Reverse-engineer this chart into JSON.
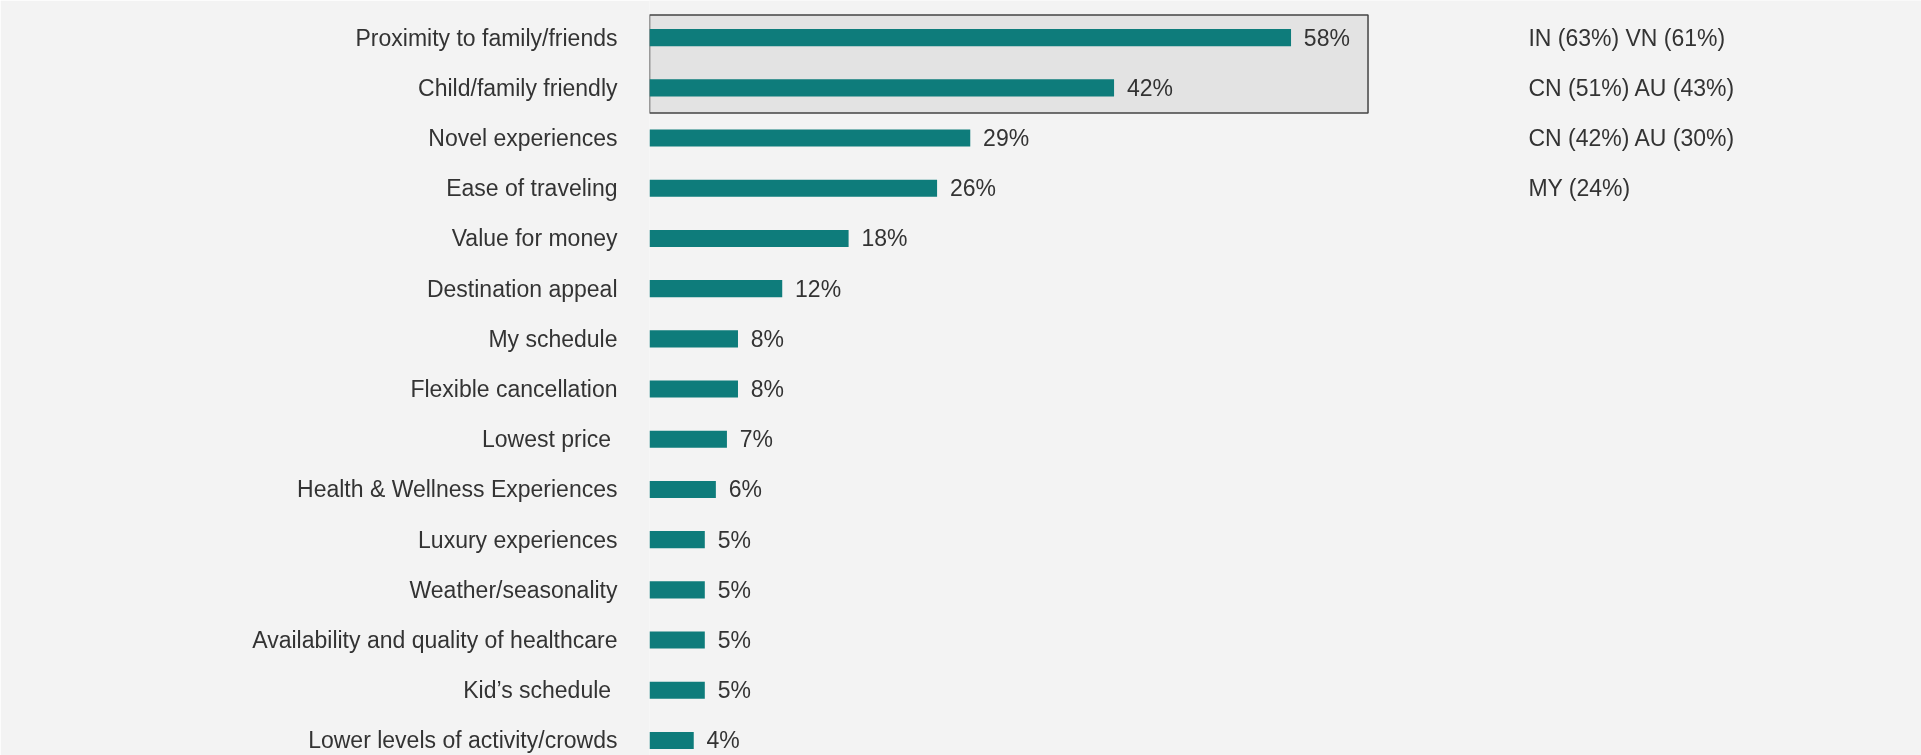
{
  "chart_data": {
    "type": "bar",
    "orientation": "horizontal",
    "data_labels": true,
    "grid": false,
    "tick_labels": "y",
    "bands": [
      {
        "axis": "y",
        "from": "Proximity to family/friends",
        "to": "Child/family friendly",
        "color": "#dcdcdc"
      }
    ],
    "categories": [
      "Proximity to family/friends",
      "Child/family friendly",
      "Novel experiences",
      "Ease of traveling",
      "Value for money",
      "Destination appeal",
      "My schedule",
      "Flexible cancellation",
      "Lowest price ",
      "Health & Wellness Experiences",
      "Luxury experiences",
      "Weather/seasonality",
      "Availability and quality of healthcare",
      "Kid’s schedule ",
      "Lower levels of activity/crowds"
    ],
    "series": [
      {
        "color": "#0e7c7b",
        "values": [
          58,
          42,
          29,
          26,
          18,
          12,
          8,
          8,
          7,
          6,
          5,
          5,
          5,
          5,
          4
        ],
        "value_labels": [
          "58%",
          "42%",
          "29%",
          "26%",
          "18%",
          "12%",
          "8%",
          "8%",
          "7%",
          "6%",
          "5%",
          "5%",
          "5%",
          "5%",
          "4%"
        ]
      }
    ],
    "annotations": [
      "IN (63%) VN (61%)",
      "CN (51%) AU (43%)",
      "CN (42%) AU (30%)",
      "MY (24%)"
    ]
  }
}
